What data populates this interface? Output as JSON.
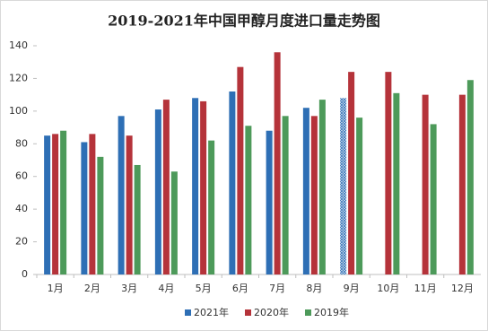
{
  "chart_data": {
    "type": "bar",
    "title": "2019-2021年中国甲醇月度进口量走势图",
    "categories": [
      "1月",
      "2月",
      "3月",
      "4月",
      "5月",
      "6月",
      "7月",
      "8月",
      "9月",
      "10月",
      "11月",
      "12月"
    ],
    "series": [
      {
        "name": "2021年",
        "color": "#2e6fb5",
        "values": [
          85,
          81,
          97,
          101,
          108,
          112,
          88,
          102,
          108,
          null,
          null,
          null
        ],
        "patterned": [
          8
        ]
      },
      {
        "name": "2020年",
        "color": "#b5333a",
        "values": [
          86,
          86,
          85,
          107,
          106,
          127,
          136,
          97,
          124,
          124,
          110,
          110
        ]
      },
      {
        "name": "2019年",
        "color": "#4d9a5a",
        "values": [
          88,
          72,
          67,
          63,
          82,
          91,
          97,
          107,
          96,
          111,
          92,
          119
        ]
      }
    ],
    "ylim": [
      0,
      140
    ],
    "yticks": [
      0,
      20,
      40,
      60,
      80,
      100,
      120,
      140
    ]
  }
}
